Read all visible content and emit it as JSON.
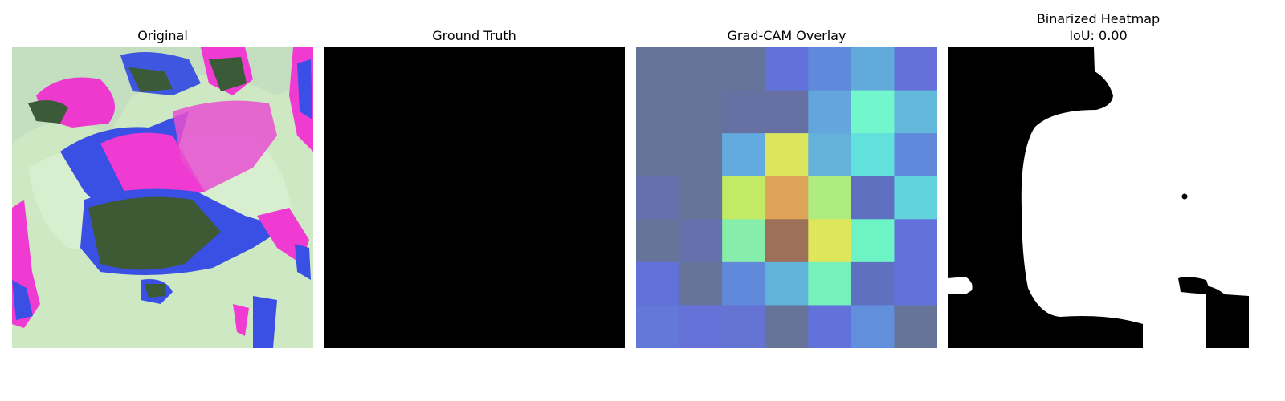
{
  "panels": {
    "original": {
      "title": "Original"
    },
    "ground_truth": {
      "title": "Ground Truth"
    },
    "gradcam": {
      "title": "Grad-CAM Overlay",
      "grid_size": 7,
      "cell_colors": [
        [
          "#66749a",
          "#66749a",
          "#66749a",
          "#6371db",
          "#6189db",
          "#63aadc",
          "#6571d9"
        ],
        [
          "#66749a",
          "#66749a",
          "#6670a2",
          "#6670a2",
          "#62a6dd",
          "#72f6cb",
          "#62b9dc"
        ],
        [
          "#66749a",
          "#66749a",
          "#62aadf",
          "#dbe65e",
          "#62b2da",
          "#62e0dc",
          "#6189db"
        ],
        [
          "#6670ad",
          "#66749a",
          "#c3ea65",
          "#dea45a",
          "#aeec7f",
          "#6070c0",
          "#60d3dc"
        ],
        [
          "#66749a",
          "#6670ad",
          "#86eeaa",
          "#9d705a",
          "#dee65c",
          "#6cf4c4",
          "#6371db"
        ],
        [
          "#6270da",
          "#66749a",
          "#6189db",
          "#61b3da",
          "#75f1b9",
          "#6070c0",
          "#6371db"
        ],
        [
          "#6378d8",
          "#6672d8",
          "#6574d3",
          "#66749a",
          "#6371db",
          "#618fdb",
          "#66749a"
        ]
      ]
    },
    "binarized": {
      "title_line1": "Binarized Heatmap",
      "title_line2": "IoU: 0.00"
    }
  }
}
